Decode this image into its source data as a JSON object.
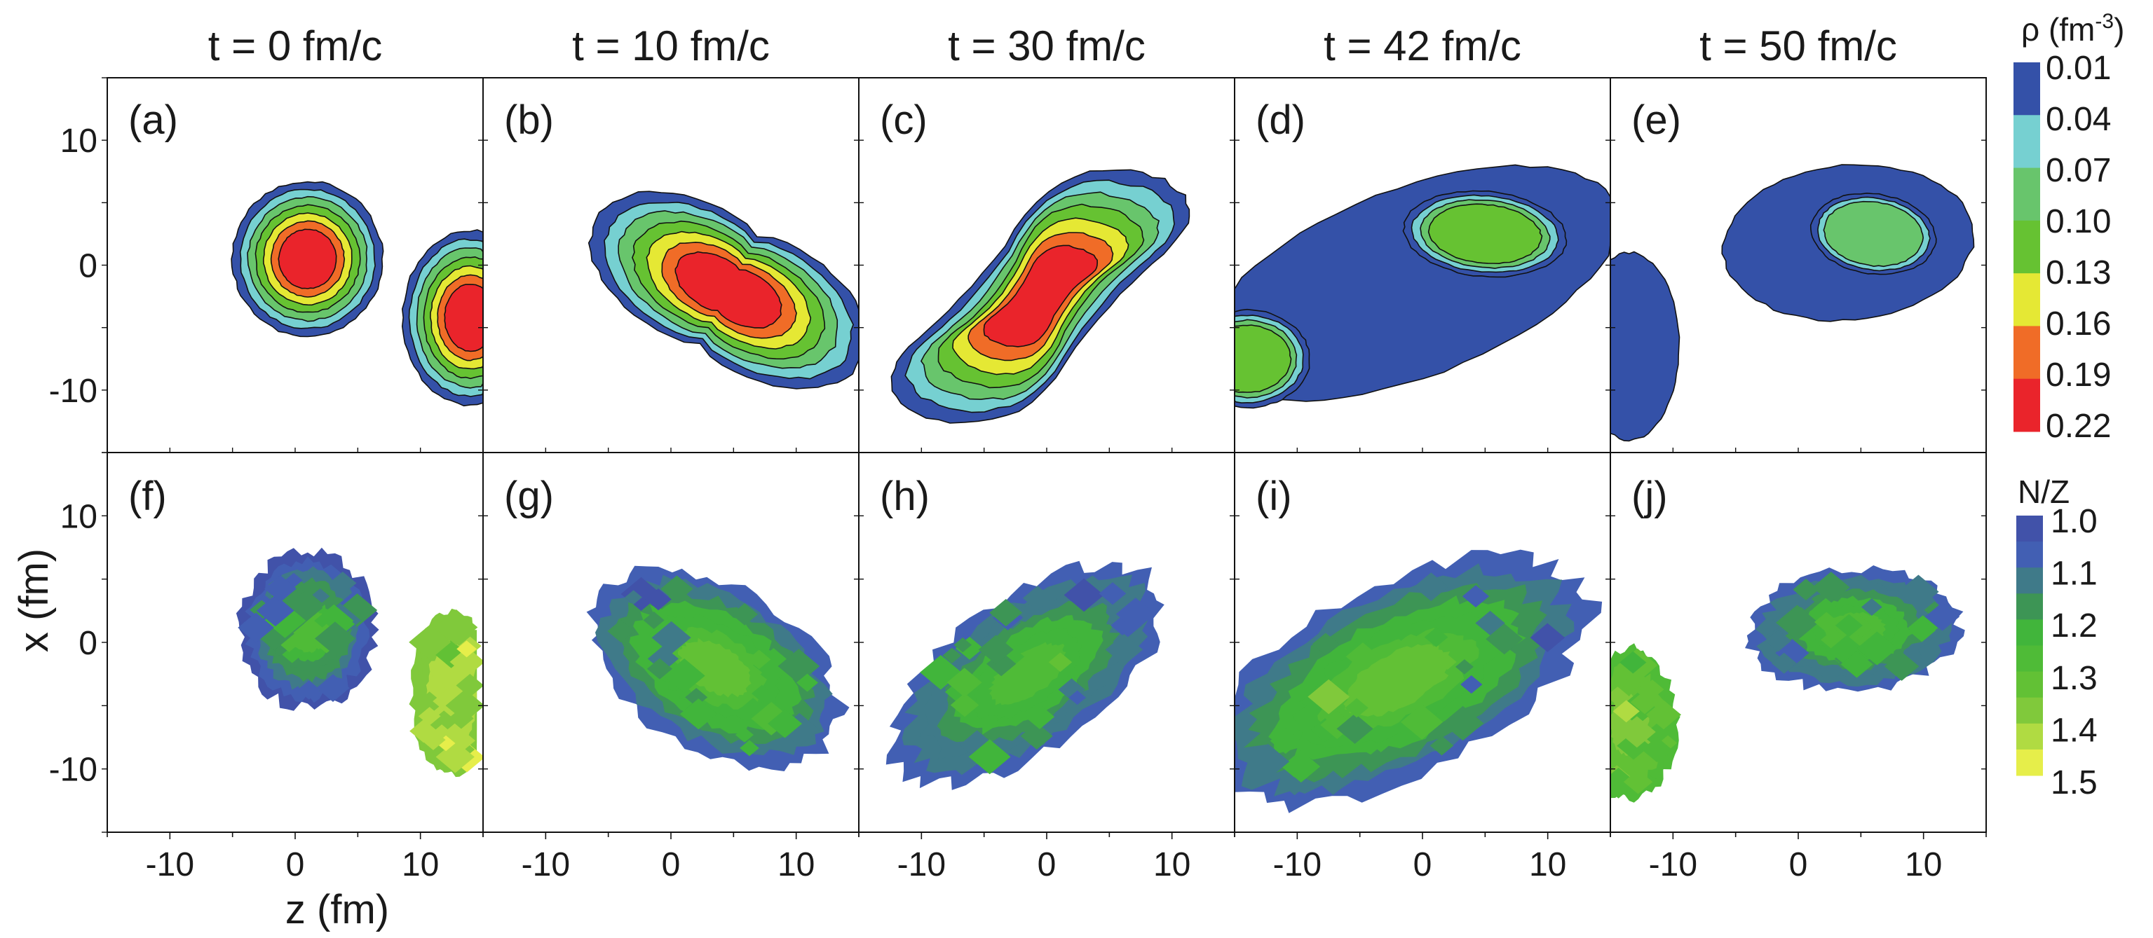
{
  "chart_data": {
    "type": "heatmap",
    "title": "",
    "xlabel": "z (fm)",
    "ylabel": "x (fm)",
    "xlim": [
      -15,
      15
    ],
    "ylim": [
      -15,
      15
    ],
    "x_ticks": [
      -10,
      0,
      10
    ],
    "y_ticks": [
      -10,
      0,
      10
    ],
    "x_tick_labels": [
      "-10",
      "0",
      "10"
    ],
    "y_tick_labels": [
      "-10",
      "0",
      "10"
    ],
    "grid": false,
    "columns": [
      {
        "time_label": "t = 0 fm/c",
        "t": 0
      },
      {
        "time_label": "t = 10 fm/c",
        "t": 10
      },
      {
        "time_label": "t = 30 fm/c",
        "t": 30
      },
      {
        "time_label": "t = 42 fm/c",
        "t": 42
      },
      {
        "time_label": "t = 50 fm/c",
        "t": 50
      }
    ],
    "rows": [
      {
        "quantity": "density",
        "panel_labels": [
          "(a)",
          "(b)",
          "(c)",
          "(d)",
          "(e)"
        ],
        "colorbar": {
          "title": "ρ (fm",
          "title_sup": "-3",
          "title_end": ")",
          "levels": [
            "0.01",
            "0.04",
            "0.07",
            "0.10",
            "0.13",
            "0.16",
            "0.19",
            "0.22"
          ],
          "colors": [
            "#3451a8",
            "#76d0d1",
            "#68c56c",
            "#66c232",
            "#e5e834",
            "#f06c27",
            "#ea242b"
          ]
        }
      },
      {
        "quantity": "N/Z",
        "panel_labels": [
          "(f)",
          "(g)",
          "(h)",
          "(i)",
          "(j)"
        ],
        "colorbar": {
          "title": "N/Z",
          "levels": [
            "1.0",
            "1.1",
            "1.2",
            "1.3",
            "1.4",
            "1.5"
          ],
          "colors": [
            "#4152a9",
            "#425fb3",
            "#3f7a89",
            "#3d9555",
            "#41b53b",
            "#4fbb37",
            "#62c135",
            "#80c93b",
            "#b0db42",
            "#e6ee4a"
          ]
        }
      }
    ],
    "density_panels": [
      {
        "blobs": [
          {
            "cx": 1.0,
            "cy": 0.5,
            "rx": 6.0,
            "ry": 6.2,
            "angle": 0,
            "levels": 7
          },
          {
            "cx": 14.0,
            "cy": -4.2,
            "rx": 5.4,
            "ry": 7.0,
            "angle": 0,
            "levels": 7,
            "clip_right": 15
          }
        ]
      },
      {
        "blobs": [
          {
            "cx": 4.6,
            "cy": -2.0,
            "rx": 12.0,
            "ry": 6.5,
            "angle": -28,
            "levels": 7,
            "dumbbell": true
          }
        ]
      },
      {
        "blobs": [
          {
            "cx": -0.5,
            "cy": -2.5,
            "rx": 14.0,
            "ry": 6.2,
            "angle": 35,
            "levels": 7,
            "s_shape": true
          }
        ]
      },
      {
        "blobs": [
          {
            "cx": -1.0,
            "cy": -1.5,
            "rx": 17.5,
            "ry": 7.5,
            "angle": 21,
            "levels": 1
          },
          {
            "cx": 5.0,
            "cy": 2.5,
            "rx": 6.5,
            "ry": 3.4,
            "angle": -5,
            "levels": 4
          },
          {
            "cx": -14.0,
            "cy": -7.5,
            "rx": 5.0,
            "ry": 3.9,
            "angle": 0,
            "levels": 4
          }
        ]
      },
      {
        "blobs": [
          {
            "cx": 4.0,
            "cy": 1.8,
            "rx": 10.0,
            "ry": 6.2,
            "angle": 5,
            "levels": 1
          },
          {
            "cx": 6.0,
            "cy": 2.5,
            "rx": 5.0,
            "ry": 3.2,
            "angle": -8,
            "levels": 3
          },
          {
            "cx": -13.5,
            "cy": -6.5,
            "rx": 4.0,
            "ry": 7.5,
            "angle": 0,
            "levels": 1,
            "clip_left": -15
          }
        ]
      }
    ],
    "nz_panels": [
      {
        "blobs": [
          {
            "cx": 1.0,
            "cy": 1.0,
            "rx": 5.4,
            "ry": 6.2,
            "angle": 0,
            "center_level": 5,
            "edge_level": 0
          },
          {
            "cx": 12.5,
            "cy": -4.2,
            "rx": 3.2,
            "ry": 6.5,
            "angle": 0,
            "center_level": 8,
            "edge_level": 7,
            "clip_right": 14.5
          }
        ]
      },
      {
        "blobs": [
          {
            "cx": 3.5,
            "cy": -2.0,
            "rx": 11.0,
            "ry": 6.5,
            "angle": -30,
            "center_level": 6,
            "edge_level": 1,
            "gradient_dir": 1
          }
        ]
      },
      {
        "blobs": [
          {
            "cx": -1.5,
            "cy": -2.5,
            "rx": 12.5,
            "ry": 6.0,
            "angle": 35,
            "center_level": 5,
            "edge_level": 1,
            "gradient_dir": -1
          }
        ]
      },
      {
        "blobs": [
          {
            "cx": -2.0,
            "cy": -3.0,
            "rx": 16.5,
            "ry": 7.5,
            "angle": 26,
            "center_level": 6,
            "edge_level": 1,
            "gradient_dir": -1
          }
        ]
      },
      {
        "blobs": [
          {
            "cx": 4.5,
            "cy": 1.0,
            "rx": 8.5,
            "ry": 4.8,
            "angle": 3,
            "center_level": 5,
            "edge_level": 1
          },
          {
            "cx": -13.5,
            "cy": -6.5,
            "rx": 3.8,
            "ry": 6.0,
            "angle": 0,
            "center_level": 7,
            "edge_level": 5,
            "clip_left": -15
          }
        ]
      }
    ]
  }
}
